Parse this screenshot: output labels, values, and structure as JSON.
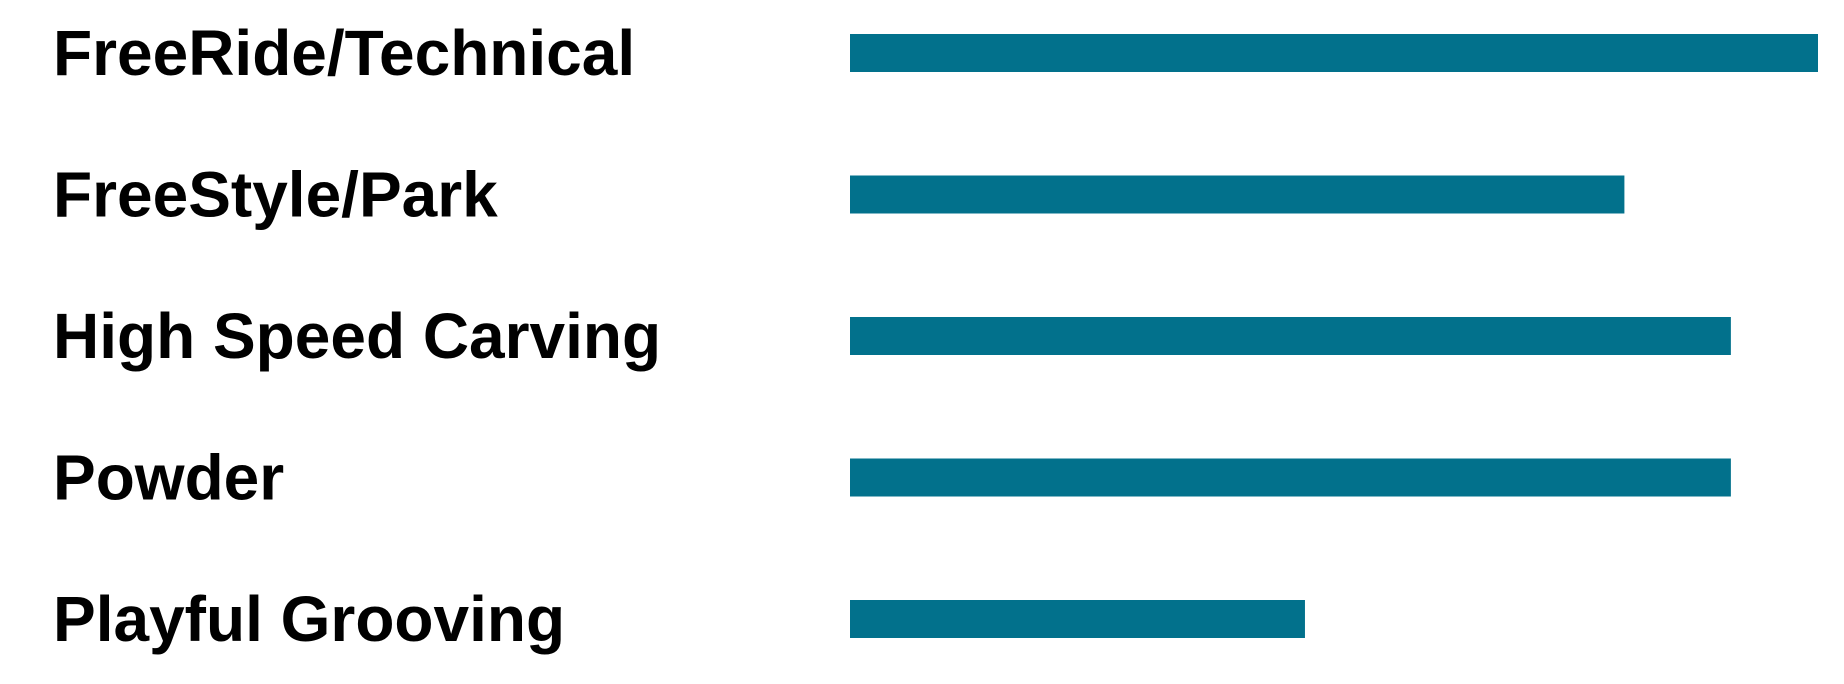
{
  "chart_data": {
    "type": "bar",
    "orientation": "horizontal",
    "categories": [
      "FreeRide/Technical",
      "FreeStyle/Park",
      "High Speed Carving",
      "Powder",
      "Playful Grooving"
    ],
    "values": [
      100,
      80,
      91,
      91,
      47
    ],
    "xlim": [
      0,
      100
    ],
    "title": "",
    "xlabel": "",
    "ylabel": "",
    "grid": false,
    "legend": false,
    "bar_color": "#02718c"
  }
}
